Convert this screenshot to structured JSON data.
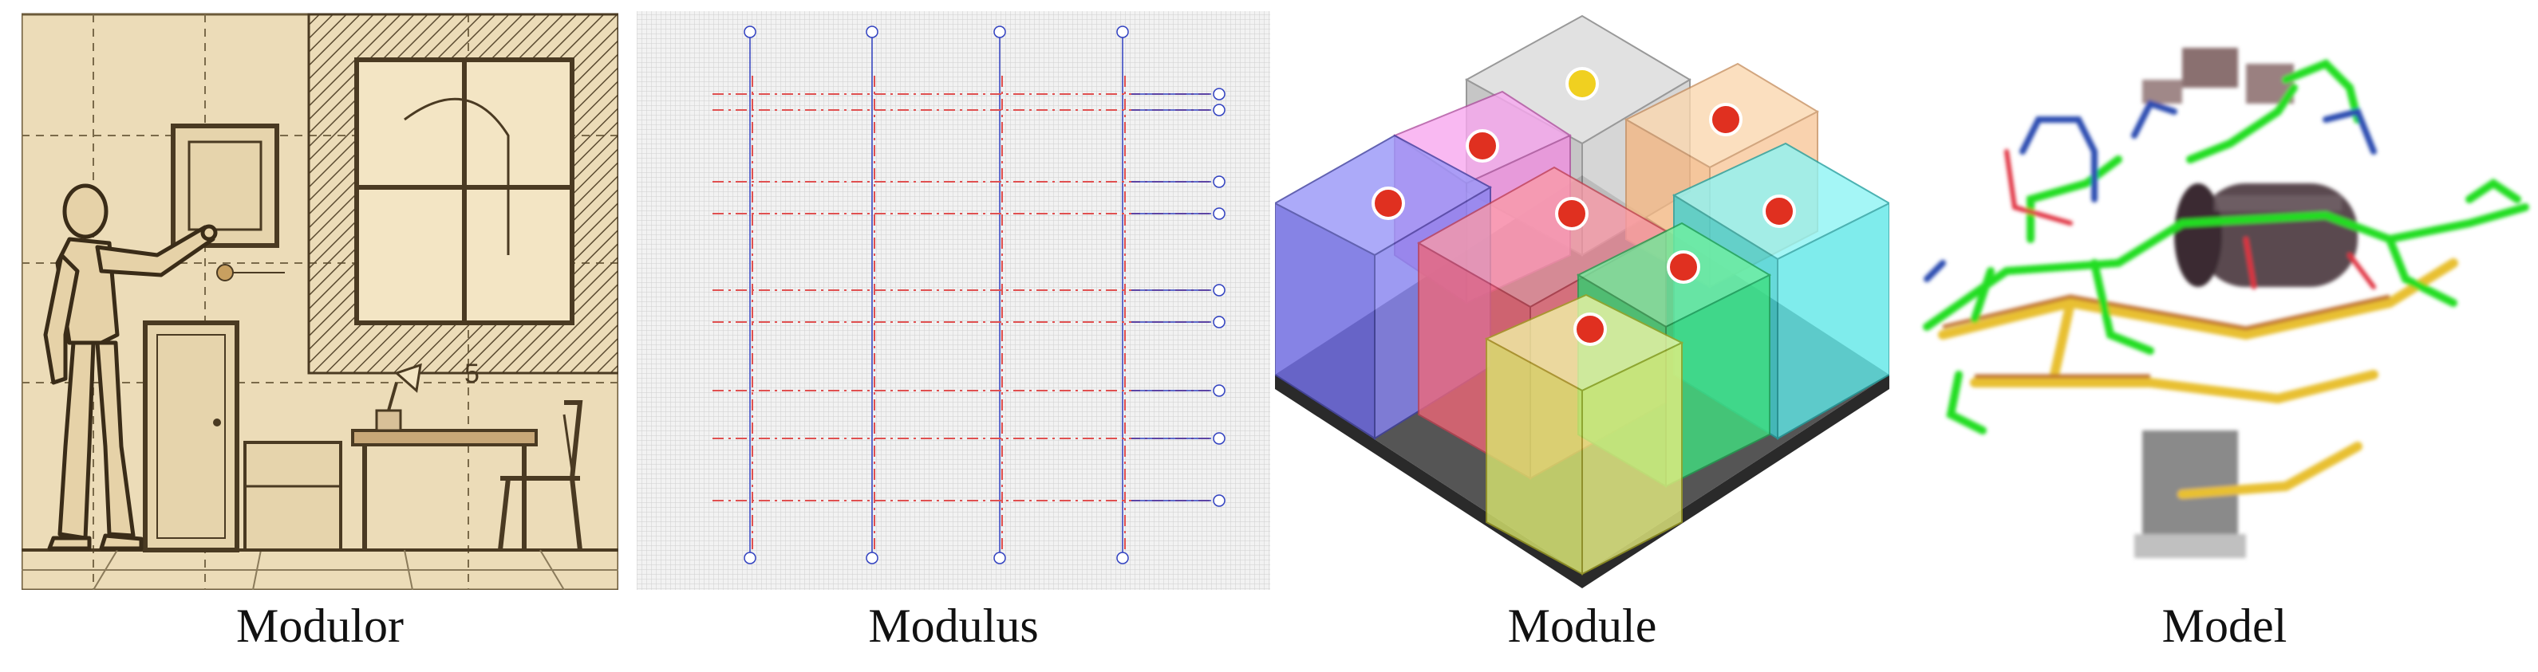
{
  "panels": [
    {
      "caption": "Modulor",
      "sketch_number": "5"
    },
    {
      "caption": "Modulus"
    },
    {
      "caption": "Module"
    },
    {
      "caption": "Model"
    }
  ],
  "colors": {
    "sketch_bg": "#ecdcb8",
    "sketch_ink": "#4a3a22",
    "grid_bg": "#ececec",
    "grid_red": "#e05050",
    "grid_blue": "#3040c0",
    "module_blue": "#7c78f0",
    "module_pink": "#f090e0",
    "module_gray": "#d0d0d0",
    "module_peach": "#f8c89a",
    "module_red": "#f87888",
    "module_cyan": "#60e8e8",
    "module_green": "#40e080",
    "module_yellow": "#e8f080",
    "pipe_green": "#22dd22",
    "pipe_yellow": "#e8d030",
    "pipe_blue": "#2a4cb0"
  },
  "icons": [
    "human-figure-icon",
    "door-icon",
    "window-icon",
    "picture-frame-icon",
    "desk-lamp-icon",
    "chair-icon",
    "cabinet-icon",
    "marker-icon",
    "tank-icon",
    "equipment-icon"
  ]
}
